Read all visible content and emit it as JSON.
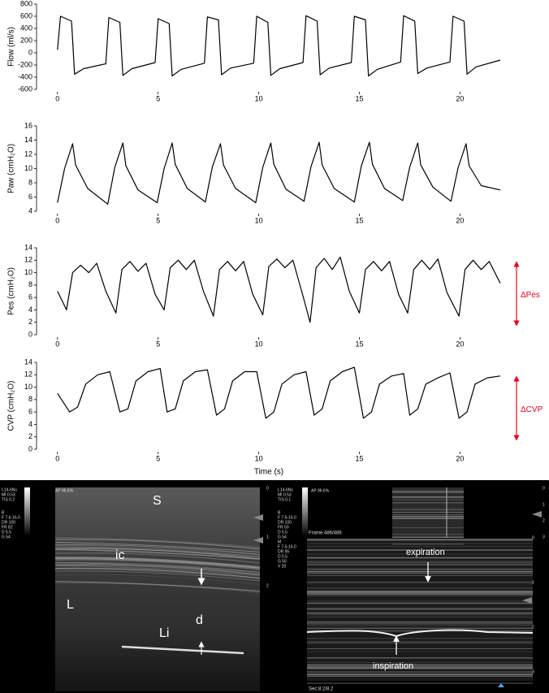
{
  "chart_data": [
    {
      "type": "line",
      "ylabel": "Flow (ml/s)",
      "color": "#000000",
      "xlim": [
        -1,
        22
      ],
      "xticks": [
        0,
        5,
        10,
        15,
        20
      ],
      "ylim": [
        -600,
        800
      ],
      "yticks": [
        -600,
        -400,
        -200,
        0,
        200,
        400,
        600,
        800
      ],
      "x": [
        0,
        0.15,
        0.7,
        0.85,
        1.3,
        2.4,
        2.55,
        3.1,
        3.25,
        3.7,
        4.85,
        5.0,
        5.55,
        5.7,
        6.15,
        7.3,
        7.45,
        8.0,
        8.15,
        8.6,
        9.75,
        9.9,
        10.45,
        10.6,
        11.05,
        12.2,
        12.35,
        12.9,
        13.05,
        13.5,
        14.6,
        14.75,
        15.3,
        15.45,
        15.9,
        17.05,
        17.2,
        17.75,
        17.9,
        18.35,
        19.5,
        19.65,
        20.2,
        20.35,
        20.8,
        22
      ],
      "values": [
        50,
        600,
        520,
        -350,
        -260,
        -180,
        580,
        500,
        -370,
        -260,
        -160,
        560,
        480,
        -380,
        -270,
        -170,
        590,
        540,
        -360,
        -250,
        -170,
        600,
        500,
        -370,
        -260,
        -160,
        610,
        520,
        -360,
        -250,
        -160,
        600,
        540,
        -380,
        -270,
        -150,
        610,
        520,
        -340,
        -250,
        -150,
        600,
        520,
        -350,
        -230,
        -120
      ]
    },
    {
      "type": "line",
      "ylabel": "Paw (cmH₂O)",
      "color": "#000000",
      "xlim": [
        -1,
        22
      ],
      "xticks": [
        0,
        5,
        10,
        15,
        20
      ],
      "ylim": [
        4,
        16
      ],
      "yticks": [
        4,
        6,
        8,
        10,
        12,
        14,
        16
      ],
      "x": [
        0,
        0.35,
        0.75,
        0.9,
        1.5,
        2.5,
        2.85,
        3.25,
        3.4,
        4.0,
        4.95,
        5.3,
        5.7,
        5.85,
        6.45,
        7.35,
        7.7,
        8.1,
        8.25,
        8.85,
        9.85,
        10.2,
        10.6,
        10.75,
        11.35,
        12.25,
        12.6,
        13.0,
        13.15,
        13.75,
        14.75,
        15.1,
        15.5,
        15.65,
        16.25,
        17.15,
        17.5,
        17.9,
        18.05,
        18.65,
        19.55,
        19.9,
        20.3,
        20.45,
        21.05,
        22
      ],
      "values": [
        5.2,
        10,
        13.5,
        10.5,
        7.2,
        5.0,
        10.2,
        13.6,
        10.4,
        7.0,
        5.2,
        10,
        13.6,
        10.6,
        7.2,
        5.3,
        10.3,
        13.5,
        10.5,
        7.2,
        5.2,
        10.2,
        13.6,
        10.6,
        7.1,
        5.4,
        10.3,
        13.7,
        10.5,
        7.2,
        5.3,
        10.4,
        13.7,
        10.6,
        7.2,
        5.5,
        10.2,
        13.6,
        10.5,
        7.4,
        5.4,
        10.1,
        13.5,
        10.4,
        7.6,
        7.0
      ]
    },
    {
      "type": "line",
      "ylabel": "Pes (cmH₂O)",
      "color": "#000000",
      "annotation": "ΔPes",
      "annotation_color": "#e8001c",
      "xlim": [
        -1,
        22
      ],
      "xticks": [
        0,
        5,
        10,
        15,
        20
      ],
      "ylim": [
        0,
        14
      ],
      "yticks": [
        0,
        2,
        4,
        6,
        8,
        10,
        12,
        14
      ],
      "x": [
        0,
        0.45,
        0.75,
        1.15,
        1.55,
        1.95,
        2.4,
        2.9,
        3.2,
        3.6,
        4.0,
        4.4,
        4.85,
        5.3,
        5.6,
        6.0,
        6.4,
        6.8,
        7.25,
        7.75,
        8.05,
        8.45,
        8.85,
        9.25,
        9.7,
        10.2,
        10.5,
        10.9,
        11.3,
        11.7,
        12.15,
        12.55,
        12.85,
        13.25,
        13.65,
        14.05,
        14.5,
        15.0,
        15.3,
        15.7,
        16.1,
        16.5,
        16.95,
        17.4,
        17.7,
        18.1,
        18.5,
        18.9,
        19.35,
        19.95,
        20.25,
        20.65,
        21.05,
        21.45,
        22
      ],
      "values": [
        7,
        4,
        10,
        11.2,
        10,
        11.5,
        7,
        3.5,
        10.5,
        11.8,
        10.2,
        11.5,
        6.5,
        4,
        10.8,
        12,
        10.5,
        12,
        7,
        3,
        10.5,
        11.8,
        10.3,
        11.8,
        6.5,
        3.2,
        11,
        12.2,
        10.8,
        12,
        6.8,
        2,
        10.8,
        12.3,
        10.5,
        12.5,
        7,
        3.5,
        10.5,
        11.8,
        10.3,
        11.8,
        6.5,
        3.5,
        10.5,
        12,
        10.5,
        12.2,
        6.8,
        3,
        10.5,
        12,
        10.5,
        11.8,
        8.3
      ]
    },
    {
      "type": "line",
      "ylabel": "CVP (cmH₂O)",
      "xlabel": "Time (s)",
      "color": "#000000",
      "annotation": "ΔCVP",
      "annotation_color": "#e8001c",
      "xlim": [
        -1,
        22
      ],
      "xticks": [
        0,
        5,
        10,
        15,
        20
      ],
      "ylim": [
        0,
        14
      ],
      "yticks": [
        0,
        2,
        4,
        6,
        8,
        10,
        12,
        14
      ],
      "x": [
        0,
        0.6,
        1.0,
        1.4,
        2.0,
        2.6,
        3.1,
        3.5,
        3.9,
        4.5,
        5.1,
        5.45,
        5.85,
        6.25,
        6.85,
        7.45,
        7.9,
        8.3,
        8.7,
        9.3,
        9.9,
        10.35,
        10.75,
        11.15,
        11.75,
        12.35,
        12.75,
        13.15,
        13.55,
        14.15,
        14.75,
        15.2,
        15.6,
        16.0,
        16.6,
        17.2,
        17.5,
        17.9,
        18.3,
        18.9,
        19.5,
        19.95,
        20.35,
        20.75,
        21.35,
        22
      ],
      "values": [
        9,
        6,
        6.8,
        10.5,
        12,
        12.5,
        6,
        6.5,
        11,
        12.5,
        13,
        6,
        6.5,
        11,
        12.5,
        12.8,
        5.5,
        6.5,
        11,
        12.5,
        12.5,
        5,
        6,
        10.5,
        12,
        12.5,
        5.5,
        6.5,
        11,
        12.5,
        13.2,
        5,
        6,
        10.5,
        11.8,
        12.2,
        5.5,
        6.5,
        10.5,
        11.5,
        12.3,
        5,
        6,
        10.5,
        11.5,
        11.8
      ]
    }
  ],
  "ultrasound": {
    "left": {
      "info": [
        "L14-6Ns",
        "MI 0.53",
        "TIS 0.2"
      ],
      "ap": "AP 96.6%",
      "settings": [
        "B",
        "F 7.6-16.0",
        "DR 100",
        "FR 82",
        "D 5.5",
        "G 54"
      ],
      "labels": {
        "s": "S",
        "ic": "ic",
        "l": "L",
        "d": "d",
        "li": "Li"
      },
      "depth": [
        "0",
        "1",
        "2"
      ]
    },
    "right": {
      "info": [
        "L14-6Ns",
        "MI 0.53",
        "TIS 0.1"
      ],
      "ap": "AP 96.6%",
      "settings": [
        "B",
        "F 7.6-16.0",
        "DR 100",
        "FR 59",
        "D 5.5",
        "G 54",
        "M",
        "F 7.6-16.0",
        "DR 95",
        "D 5.5",
        "G 50",
        "V 20"
      ],
      "frame": "Frame:486/486",
      "expiration": "expiration",
      "inspiration": "inspiration",
      "sec": "Sec:8.2/8.2",
      "depth": [
        "0",
        "1",
        "2",
        "3"
      ]
    }
  }
}
